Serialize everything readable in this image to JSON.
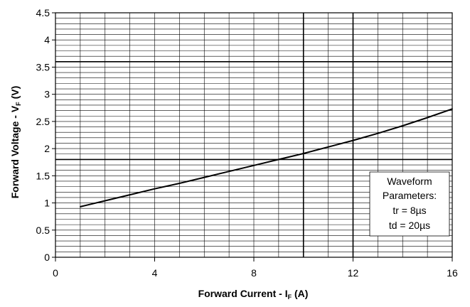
{
  "chart_data": {
    "type": "line",
    "xlabel": {
      "text": "Forward Current - I",
      "subscript": "F",
      "suffix": " (A)"
    },
    "ylabel": {
      "text": "Forward Voltage - V",
      "subscript": "F",
      "suffix": " (V)"
    },
    "xlim": [
      0,
      16
    ],
    "ylim": [
      0,
      4.5
    ],
    "xticks": [
      0,
      4,
      8,
      12,
      16
    ],
    "xtick_labels": [
      "0",
      "4",
      "8",
      "12",
      "16"
    ],
    "yticks": [
      0,
      0.5,
      1,
      1.5,
      2,
      2.5,
      3,
      3.5,
      4,
      4.5
    ],
    "ytick_labels": [
      "0",
      "0.5",
      "1",
      "1.5",
      "2",
      "2.5",
      "3",
      "3.5",
      "4",
      "4.5"
    ],
    "grid": {
      "vertical_minor_step": 1,
      "horizontal_minor_step": 0.1,
      "bold_vertical_at": [
        10,
        12
      ],
      "bold_horizontal_at": [
        1.8,
        3.6
      ]
    },
    "series": [
      {
        "x": [
          1,
          2,
          3,
          4,
          5,
          6,
          7,
          8,
          9,
          10,
          11,
          12,
          13,
          14,
          15,
          16
        ],
        "y": [
          0.93,
          1.04,
          1.15,
          1.26,
          1.36,
          1.47,
          1.58,
          1.69,
          1.8,
          1.91,
          2.03,
          2.15,
          2.28,
          2.42,
          2.57,
          2.73
        ]
      }
    ],
    "annotation": {
      "lines": [
        "Waveform",
        "Parameters:",
        "tr = 8µs",
        "td = 20µs"
      ],
      "position": "bottom-right"
    },
    "colors": {
      "line": "#000000",
      "grid": "#000000",
      "background": "#ffffff"
    }
  }
}
